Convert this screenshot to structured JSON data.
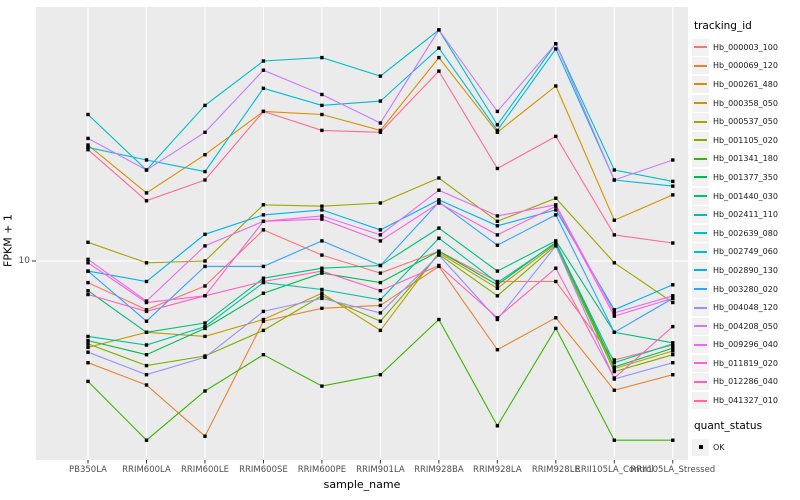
{
  "figure": {
    "background": "#FFFFFF",
    "panel_background": "#EBEBEB",
    "gridline_color": "#FFFFFF",
    "tick_color": "#333333",
    "tick_label_color": "#4D4D4D"
  },
  "axes": {
    "x_title": "sample_name",
    "y_title": "FPKM + 1",
    "y_tick_label": "10"
  },
  "legend": {
    "tracking_title": "tracking_id",
    "quant_title": "quant_status",
    "ok_label": "OK",
    "ok_marker": "black-square"
  },
  "chart_data": {
    "type": "line",
    "title": "",
    "xlabel": "sample_name",
    "ylabel": "FPKM + 1",
    "y_scale": "log10",
    "y_ticks": [
      10
    ],
    "grid": "white on grey panel, vertical line per category, horizontal line at y=10",
    "legend_position": "right",
    "marker": "small black square at every point (quant_status = OK)",
    "categories": [
      "PB350LA",
      "RRIM600LA",
      "RRIM600LE",
      "RRIM600SE",
      "RRIM600PE",
      "RRIM901LA",
      "RRIM928BA",
      "RRIM928LA",
      "RRIM928LE",
      "RRII105LA_Control",
      "RRII105LA_Stressed"
    ],
    "series": [
      {
        "name": "Hb_000003_100",
        "color": "#F8766D",
        "values": [
          7.8,
          5.7,
          7.5,
          14.3,
          10.7,
          8.7,
          11.2,
          7.9,
          7.9,
          3.2,
          3.8
        ]
      },
      {
        "name": "Hb_000069_120",
        "color": "#EA8331",
        "values": [
          3.1,
          2.4,
          1.33,
          5.0,
          5.8,
          6.0,
          9.4,
          3.6,
          5.2,
          2.26,
          2.7
        ]
      },
      {
        "name": "Hb_000261_480",
        "color": "#D89000",
        "values": [
          38,
          21.9,
          34,
          56,
          54,
          45,
          104,
          44,
          75,
          16,
          21.4
        ]
      },
      {
        "name": "Hb_000358_050",
        "color": "#C09B00",
        "values": [
          3.7,
          4.4,
          4.2,
          5.1,
          6.9,
          4.5,
          11,
          7.3,
          12.2,
          2.9,
          3.55
        ]
      },
      {
        "name": "Hb_000537_050",
        "color": "#A3A500",
        "values": [
          12.4,
          9.8,
          10,
          19.1,
          18.8,
          19.5,
          26,
          15.8,
          20.6,
          9.8,
          6.2
        ]
      },
      {
        "name": "Hb_001105_020",
        "color": "#7CAE00",
        "values": [
          3.85,
          3.0,
          3.35,
          4.5,
          6.7,
          5.0,
          10.8,
          6.7,
          12.0,
          2.8,
          3.4
        ]
      },
      {
        "name": "Hb_001341_180",
        "color": "#39B600",
        "values": [
          2.5,
          1.27,
          2.24,
          3.4,
          2.37,
          2.7,
          5.1,
          1.5,
          4.6,
          1.27,
          1.27
        ]
      },
      {
        "name": "Hb_001377_350",
        "color": "#00BB4E",
        "values": [
          4.0,
          3.4,
          4.6,
          6.9,
          8.7,
          7.8,
          11.2,
          7.6,
          12.4,
          2.95,
          3.67
        ]
      },
      {
        "name": "Hb_001440_030",
        "color": "#00BF7D",
        "values": [
          7.1,
          4.4,
          4.9,
          8.2,
          9.2,
          9.5,
          14.6,
          8.9,
          12.6,
          4.4,
          3.9
        ]
      },
      {
        "name": "Hb_002411_110",
        "color": "#00C1A3",
        "values": [
          4.2,
          3.8,
          4.7,
          7.8,
          7.2,
          6.4,
          13,
          7.8,
          12.3,
          3.1,
          3.85
        ]
      },
      {
        "name": "Hb_002639_080",
        "color": "#00BFC4",
        "values": [
          54,
          28.5,
          60,
          100,
          104,
          84,
          143,
          48,
          122,
          28.5,
          25
        ]
      },
      {
        "name": "Hb_002749_060",
        "color": "#00BAE0",
        "values": [
          37,
          32,
          28,
          73,
          60,
          63,
          116,
          45,
          115,
          25.4,
          23.7
        ]
      },
      {
        "name": "Hb_002890_130",
        "color": "#00B0F6",
        "values": [
          8.9,
          7.9,
          13.6,
          17,
          18,
          14.3,
          20.2,
          15,
          18,
          5.7,
          7.6
        ]
      },
      {
        "name": "Hb_003280_020",
        "color": "#35A2FF",
        "values": [
          8.9,
          5.0,
          9.4,
          9.4,
          12.6,
          9.5,
          19.7,
          12,
          17,
          4.4,
          6.5
        ]
      },
      {
        "name": "Hb_004048_120",
        "color": "#9590FF",
        "values": [
          3.5,
          2.7,
          3.3,
          5.6,
          6.5,
          5.5,
          10.7,
          5.1,
          11.9,
          2.57,
          3.1
        ]
      },
      {
        "name": "Hb_004208_050",
        "color": "#C77CFF",
        "values": [
          41,
          28.5,
          44,
          90,
          68,
          49,
          143,
          56,
          122,
          25.4,
          32
        ]
      },
      {
        "name": "Hb_009296_040",
        "color": "#E76BF3",
        "values": [
          10.2,
          6.3,
          11.9,
          15.8,
          16.8,
          13.5,
          22.6,
          16.8,
          19.1,
          5.5,
          6.7
        ]
      },
      {
        "name": "Hb_011819_020",
        "color": "#FA62DB",
        "values": [
          9.8,
          6.2,
          6.7,
          15.8,
          16.2,
          12.6,
          19.5,
          13.5,
          18.8,
          5.3,
          6.5
        ]
      },
      {
        "name": "Hb_012286_040",
        "color": "#FF62BC",
        "values": [
          6.8,
          5.6,
          6.7,
          7.9,
          8.9,
          7.1,
          9.5,
          5.2,
          9.2,
          2.6,
          4.7
        ]
      },
      {
        "name": "Hb_041327_010",
        "color": "#FF6A98",
        "values": [
          36,
          20,
          25.4,
          56,
          45,
          44,
          89,
          29,
          42,
          13.5,
          12.3
        ]
      }
    ]
  }
}
